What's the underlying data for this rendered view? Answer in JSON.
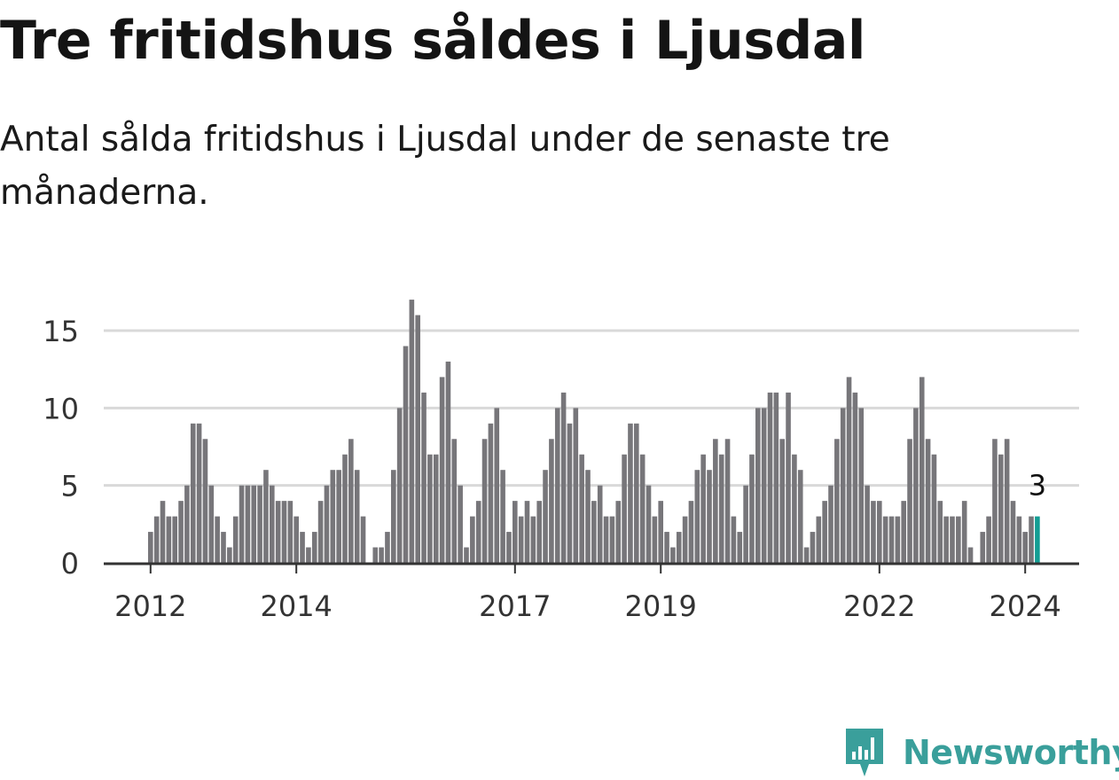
{
  "title": "Tre fritidshus såldes i Ljusdal",
  "subtitle": "Antal sålda fritidshus i Ljusdal under de senaste tre månaderna.",
  "brand": {
    "name": "Newsworthy",
    "color": "#3a9f9b",
    "icon": "newsworthy-bar-chart-logo-icon"
  },
  "colors": {
    "bar": "#77767a",
    "highlight": "#139d93",
    "grid": "#d9d9d9",
    "axis": "#333333"
  },
  "chart_data": {
    "type": "bar",
    "title": "Tre fritidshus såldes i Ljusdal",
    "subtitle": "Antal sålda fritidshus i Ljusdal under de senaste tre månaderna.",
    "xlabel": "",
    "ylabel": "",
    "ylim": [
      0,
      17
    ],
    "yticks": [
      0,
      5,
      10,
      15
    ],
    "grid": true,
    "start_year": 2012,
    "xtick_labels": [
      "2012",
      "2014",
      "2017",
      "2019",
      "2022",
      "2024"
    ],
    "values": [
      2,
      3,
      4,
      3,
      3,
      4,
      5,
      9,
      9,
      8,
      5,
      3,
      2,
      1,
      3,
      5,
      5,
      5,
      5,
      6,
      5,
      4,
      4,
      4,
      3,
      2,
      1,
      2,
      4,
      5,
      6,
      6,
      7,
      8,
      6,
      3,
      0,
      1,
      1,
      2,
      6,
      10,
      14,
      17,
      16,
      11,
      7,
      7,
      12,
      13,
      8,
      5,
      1,
      3,
      4,
      8,
      9,
      10,
      6,
      2,
      4,
      3,
      4,
      3,
      4,
      6,
      8,
      10,
      11,
      9,
      10,
      7,
      6,
      4,
      5,
      3,
      3,
      4,
      7,
      9,
      9,
      7,
      5,
      3,
      4,
      2,
      1,
      2,
      3,
      4,
      6,
      7,
      6,
      8,
      7,
      8,
      3,
      2,
      5,
      7,
      10,
      10,
      11,
      11,
      8,
      11,
      7,
      6,
      1,
      2,
      3,
      4,
      5,
      8,
      10,
      12,
      11,
      10,
      5,
      4,
      4,
      3,
      3,
      3,
      4,
      8,
      10,
      12,
      8,
      7,
      4,
      3,
      3,
      3,
      4,
      1,
      0,
      2,
      3,
      8,
      7,
      8,
      4,
      3,
      2,
      3,
      3
    ],
    "highlight_label": "3"
  }
}
